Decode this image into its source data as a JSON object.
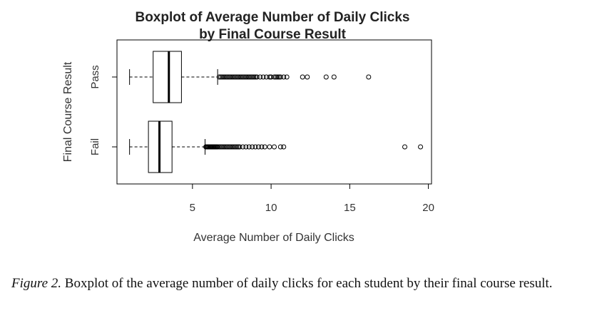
{
  "chart_data": {
    "type": "boxplot",
    "orientation": "horizontal",
    "title_line1": "Boxplot of Average Number of Daily Clicks",
    "title_line2": "by Final Course Result",
    "xlabel": "Average Number of Daily Clicks",
    "ylabel": "Final Course Result",
    "xlim": [
      0.2,
      20.2
    ],
    "x_ticks": [
      "5",
      "10",
      "15",
      "20"
    ],
    "x_tick_values": [
      5,
      10,
      15,
      20
    ],
    "grid": false,
    "groups": [
      {
        "label": "Pass",
        "whisker_low": 1.0,
        "q1": 2.5,
        "median": 3.5,
        "q3": 4.3,
        "whisker_high": 6.6,
        "outliers": [
          6.7,
          6.8,
          6.9,
          7.0,
          7.1,
          7.2,
          7.3,
          7.4,
          7.5,
          7.6,
          7.7,
          7.8,
          7.9,
          8.0,
          8.1,
          8.2,
          8.3,
          8.4,
          8.5,
          8.6,
          8.7,
          8.8,
          8.9,
          9.0,
          9.1,
          9.3,
          9.5,
          9.7,
          9.9,
          10.0,
          10.2,
          10.3,
          10.4,
          10.5,
          10.6,
          10.8,
          11.0,
          12.0,
          12.3,
          13.5,
          14.0,
          16.2
        ]
      },
      {
        "label": "Fail",
        "whisker_low": 1.0,
        "q1": 2.2,
        "median": 2.9,
        "q3": 3.7,
        "whisker_high": 5.8,
        "outliers": [
          5.85,
          5.9,
          5.95,
          6.0,
          6.05,
          6.1,
          6.15,
          6.2,
          6.25,
          6.3,
          6.35,
          6.4,
          6.45,
          6.5,
          6.55,
          6.6,
          6.7,
          6.8,
          6.9,
          7.0,
          7.1,
          7.2,
          7.3,
          7.4,
          7.5,
          7.6,
          7.7,
          7.8,
          7.9,
          8.0,
          8.2,
          8.4,
          8.6,
          8.8,
          9.0,
          9.2,
          9.4,
          9.6,
          9.9,
          10.2,
          10.6,
          10.8,
          18.5,
          19.5
        ]
      }
    ]
  },
  "caption": {
    "figure_label": "Figure 2.",
    "text": " Boxplot of the average number of daily clicks for each student by their final course result."
  }
}
